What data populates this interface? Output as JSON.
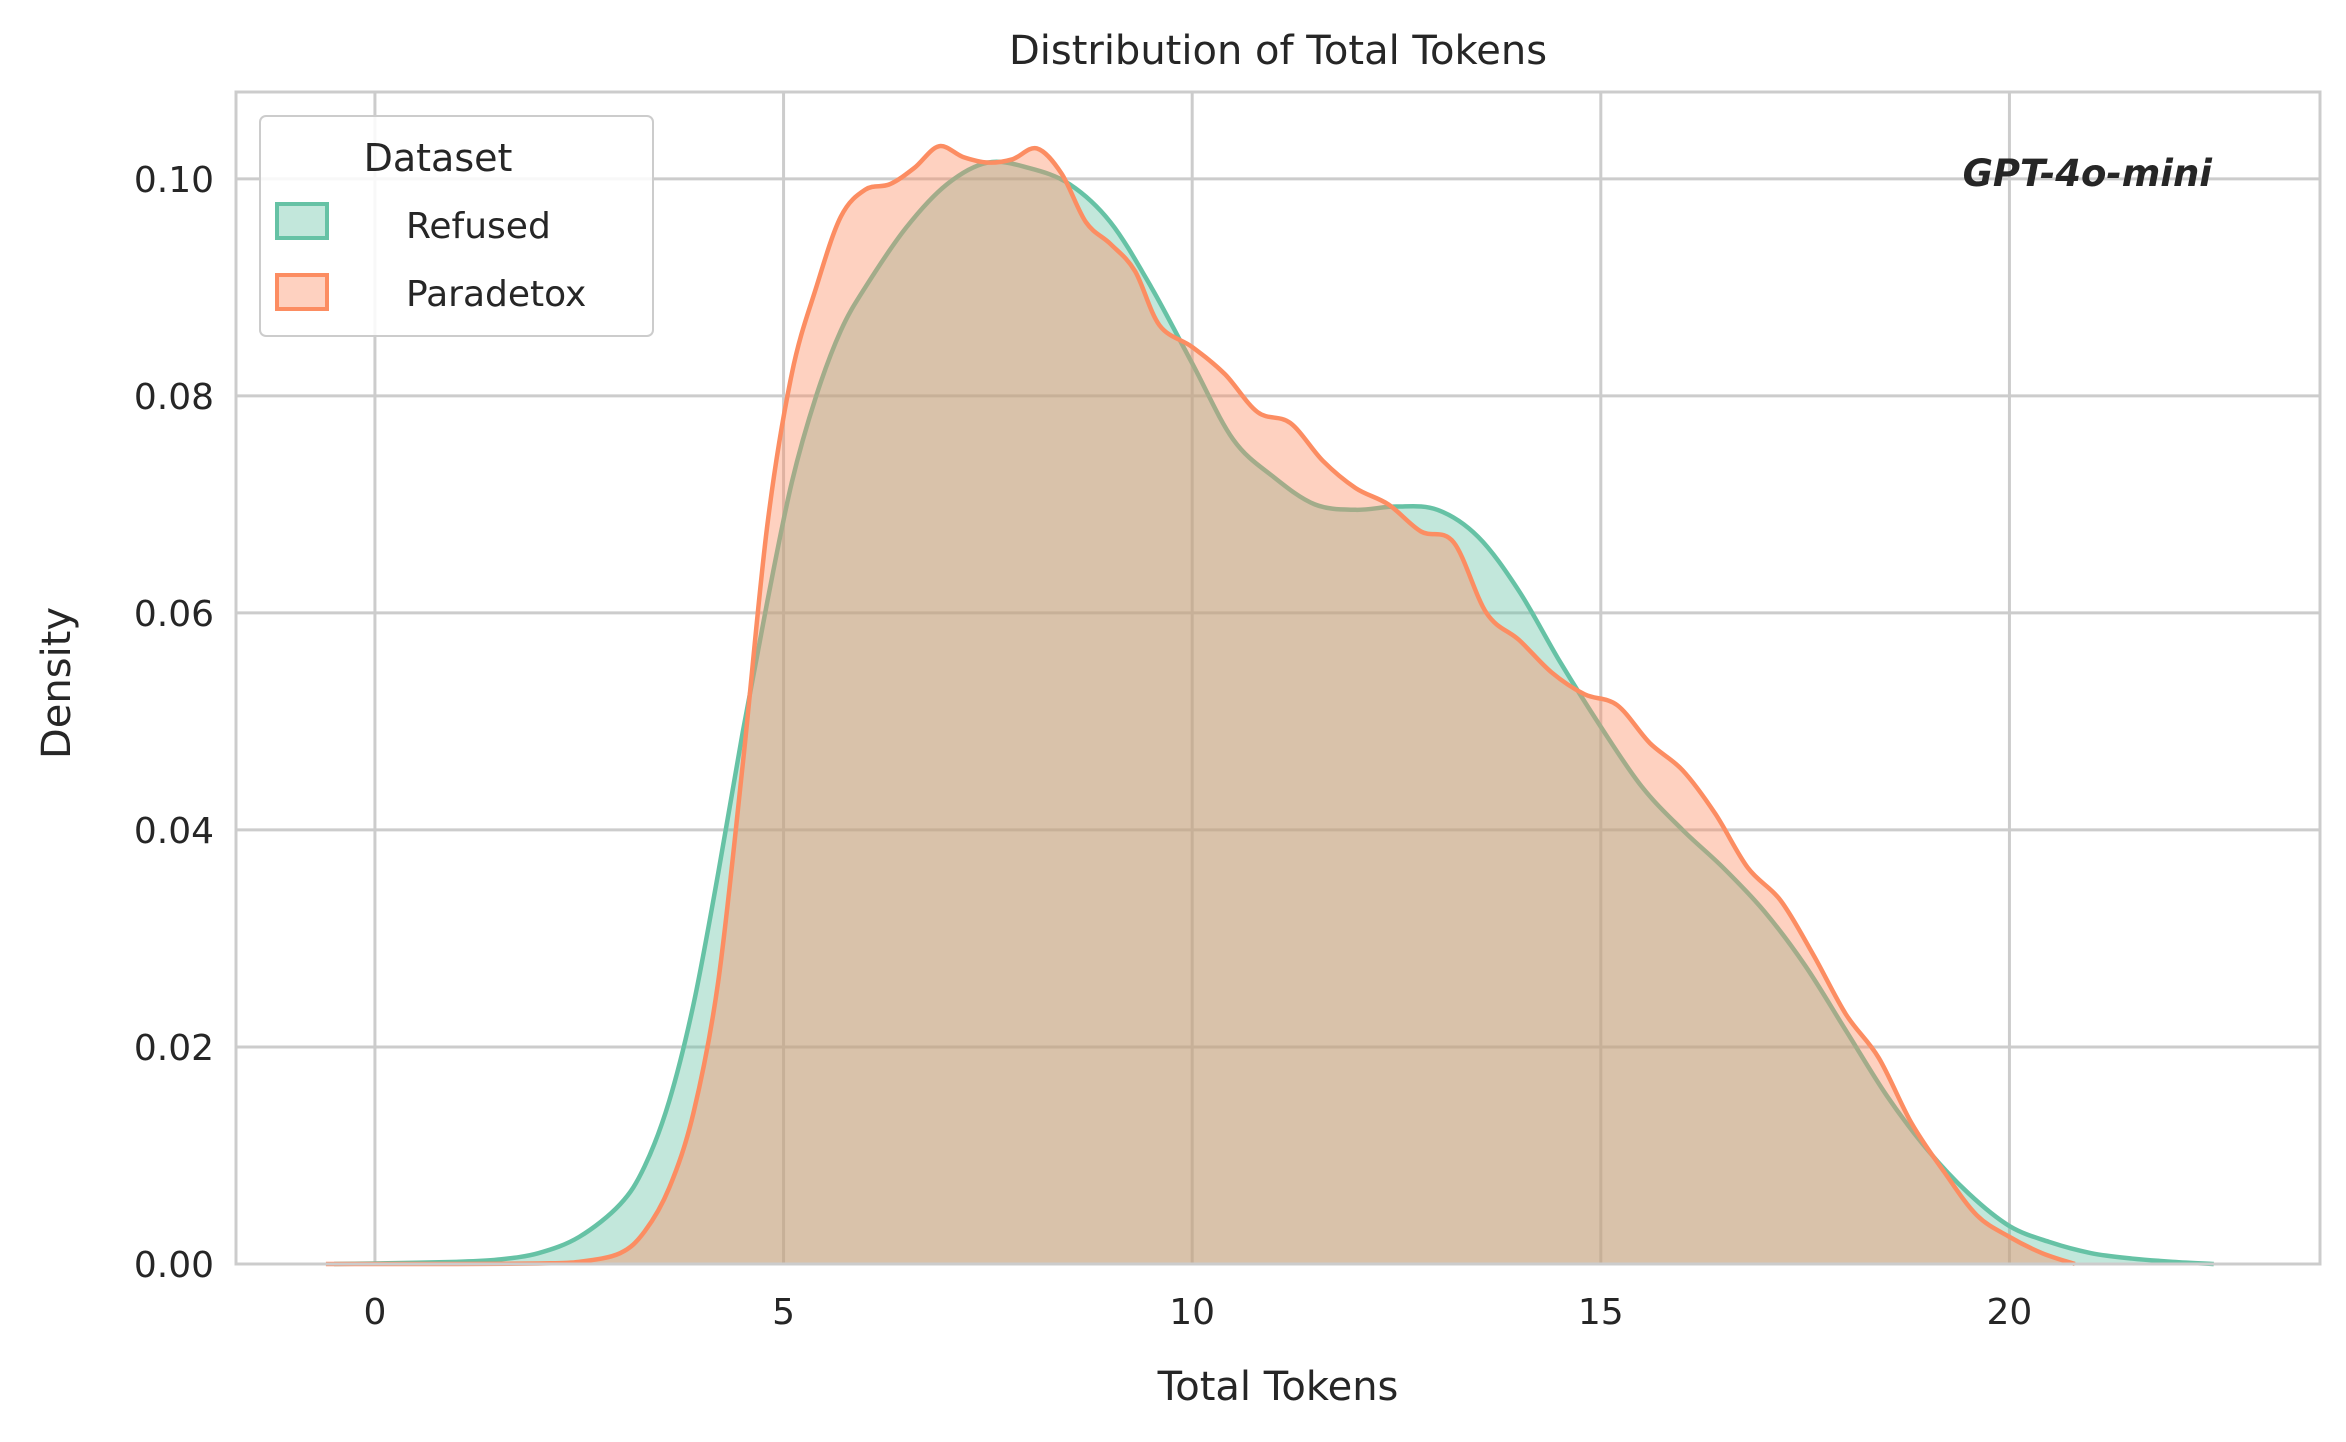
{
  "chart_data": {
    "type": "area",
    "title": "Distribution of Total Tokens",
    "xlabel": "Total Tokens",
    "ylabel": "Density",
    "xlim": [
      -1.7,
      23.8
    ],
    "ylim": [
      0,
      0.108
    ],
    "xticks": [
      0,
      5,
      10,
      15,
      20
    ],
    "xtick_labels": [
      "0",
      "5",
      "10",
      "15",
      "20"
    ],
    "yticks": [
      0,
      0.02,
      0.04,
      0.06,
      0.08,
      0.1
    ],
    "ytick_labels": [
      "0.00",
      "0.02",
      "0.04",
      "0.06",
      "0.08",
      "0.10"
    ],
    "grid": true,
    "legend": {
      "title": "Dataset",
      "placement": "top-left"
    },
    "annotation": "GPT-4o-mini",
    "series": [
      {
        "name": "Refused",
        "color": "#66c2a5",
        "x": [
          -0.5,
          0,
          1,
          1.5,
          2,
          2.5,
          3,
          3.3,
          3.6,
          3.9,
          4.2,
          4.5,
          4.8,
          5.1,
          5.4,
          5.7,
          6,
          6.5,
          7,
          7.5,
          8,
          8.5,
          9,
          9.5,
          10,
          10.5,
          11,
          11.5,
          12,
          12.5,
          13,
          13.5,
          14,
          14.5,
          15,
          15.5,
          16,
          16.5,
          17,
          17.5,
          18,
          18.5,
          19,
          19.5,
          20,
          20.5,
          21,
          21.5,
          22,
          22.5
        ],
        "y": [
          0,
          5e-05,
          0.0002,
          0.0004,
          0.001,
          0.0025,
          0.0055,
          0.009,
          0.015,
          0.024,
          0.036,
          0.049,
          0.061,
          0.072,
          0.08,
          0.086,
          0.09,
          0.0955,
          0.0995,
          0.1015,
          0.101,
          0.0995,
          0.096,
          0.09,
          0.083,
          0.076,
          0.0725,
          0.07,
          0.0695,
          0.0698,
          0.0695,
          0.067,
          0.062,
          0.0555,
          0.0495,
          0.044,
          0.04,
          0.0365,
          0.0325,
          0.0275,
          0.0215,
          0.0155,
          0.0105,
          0.0065,
          0.0035,
          0.002,
          0.001,
          0.0005,
          0.0002,
          0
        ]
      },
      {
        "name": "Paradetox",
        "color": "#fc8d62",
        "x": [
          -0.6,
          0,
          1,
          2,
          2.5,
          3,
          3.3,
          3.6,
          3.9,
          4.2,
          4.5,
          4.8,
          5.1,
          5.4,
          5.7,
          6,
          6.3,
          6.6,
          6.9,
          7.2,
          7.5,
          7.8,
          8.1,
          8.4,
          8.7,
          9,
          9.3,
          9.6,
          10,
          10.4,
          10.8,
          11.2,
          11.6,
          12,
          12.4,
          12.8,
          13.2,
          13.6,
          14,
          14.4,
          14.8,
          15.2,
          15.6,
          16,
          16.4,
          16.8,
          17.2,
          17.6,
          18,
          18.4,
          18.8,
          19.2,
          19.6,
          20,
          20.4,
          20.8
        ],
        "y": [
          0,
          0,
          0,
          5e-05,
          0.0002,
          0.001,
          0.003,
          0.007,
          0.014,
          0.026,
          0.046,
          0.068,
          0.082,
          0.09,
          0.0965,
          0.099,
          0.0995,
          0.101,
          0.103,
          0.102,
          0.1015,
          0.1018,
          0.1028,
          0.1005,
          0.096,
          0.094,
          0.0915,
          0.0865,
          0.0845,
          0.082,
          0.0785,
          0.0775,
          0.074,
          0.0715,
          0.07,
          0.0675,
          0.0665,
          0.06,
          0.0575,
          0.0545,
          0.0525,
          0.0515,
          0.048,
          0.0455,
          0.0415,
          0.0365,
          0.0335,
          0.0285,
          0.023,
          0.019,
          0.013,
          0.0085,
          0.0045,
          0.0025,
          0.001,
          0
        ]
      }
    ]
  }
}
